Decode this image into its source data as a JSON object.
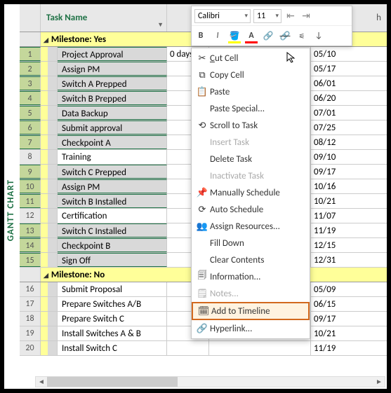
{
  "sidebar_label": "GANTT CHART",
  "header": {
    "task_name": "Task Name"
  },
  "toolbar": {
    "font": "Calibri",
    "size": "11",
    "bold": "B",
    "italic": "I"
  },
  "groups": {
    "yes": "Milestone: Yes",
    "no": "Milestone: No"
  },
  "rows": [
    {
      "n": "1",
      "name": "Project Approval",
      "dur": "0 days",
      "mid": "05/10",
      "date": "05/10",
      "sel": true,
      "gray": true
    },
    {
      "n": "2",
      "name": "Assign PM",
      "dur": "",
      "mid": "",
      "date": "05/17",
      "sel": true,
      "gray": true
    },
    {
      "n": "3",
      "name": "Switch A Prepped",
      "dur": "",
      "mid": "",
      "date": "06/01",
      "sel": true,
      "gray": true
    },
    {
      "n": "4",
      "name": "Switch B Prepped",
      "dur": "",
      "mid": "",
      "date": "06/20",
      "sel": true,
      "gray": true
    },
    {
      "n": "5",
      "name": "Data Backup",
      "dur": "",
      "mid": "",
      "date": "07/01",
      "sel": true,
      "gray": true
    },
    {
      "n": "6",
      "name": "Submit approval",
      "dur": "",
      "mid": "",
      "date": "07/25",
      "sel": true,
      "gray": true
    },
    {
      "n": "7",
      "name": "Checkpoint A",
      "dur": "",
      "mid": "",
      "date": "08/12",
      "sel": true,
      "gray": true
    },
    {
      "n": "8",
      "name": "Training",
      "dur": "",
      "mid": "",
      "date": "09/10",
      "sel": false,
      "gray": false
    },
    {
      "n": "9",
      "name": "Switch C Prepped",
      "dur": "",
      "mid": "",
      "date": "09/17",
      "sel": true,
      "gray": true
    },
    {
      "n": "10",
      "name": "Assign PM",
      "dur": "",
      "mid": "",
      "date": "10/16",
      "sel": true,
      "gray": true
    },
    {
      "n": "11",
      "name": "Switch B Installed",
      "dur": "",
      "mid": "",
      "date": "10/21",
      "sel": true,
      "gray": true
    },
    {
      "n": "12",
      "name": "Certification",
      "dur": "",
      "mid": "",
      "date": "11/07",
      "sel": false,
      "gray": false
    },
    {
      "n": "13",
      "name": "Switch C Installed",
      "dur": "",
      "mid": "",
      "date": "11/19",
      "sel": true,
      "gray": true
    },
    {
      "n": "14",
      "name": "Checkpoint B",
      "dur": "",
      "mid": "",
      "date": "12/15",
      "sel": true,
      "gray": true
    },
    {
      "n": "15",
      "name": "Sign Off",
      "dur": "",
      "mid": "",
      "date": "12/31",
      "sel": true,
      "gray": true
    }
  ],
  "rows_no": [
    {
      "n": "16",
      "name": "Submit Proposal",
      "date": "05/09"
    },
    {
      "n": "17",
      "name": "Prepare Switches A/B",
      "date": "06/15"
    },
    {
      "n": "18",
      "name": "Prepare Switch C",
      "date": "09/17"
    },
    {
      "n": "19",
      "name": "Install Switches A & B",
      "date": "10/21"
    },
    {
      "n": "20",
      "name": "Install Switch C",
      "date": "11/19"
    }
  ],
  "menu": {
    "cut": "Cut Cell",
    "copy": "Copy Cell",
    "paste": "Paste",
    "paste_special": "Paste Special...",
    "scroll": "Scroll to Task",
    "insert": "Insert Task",
    "delete": "Delete Task",
    "inactivate": "Inactivate Task",
    "manual": "Manually Schedule",
    "auto": "Auto Schedule",
    "assign": "Assign Resources...",
    "fill": "Fill Down",
    "clear": "Clear Contents",
    "info": "Information...",
    "notes": "Notes...",
    "timeline": "Add to Timeline",
    "hyperlink": "Hyperlink..."
  },
  "colors": {
    "accent": "#1e7145",
    "sel_bg": "#c4d79b",
    "yellow": "#ffff99",
    "highlight_border": "#d2691e"
  }
}
